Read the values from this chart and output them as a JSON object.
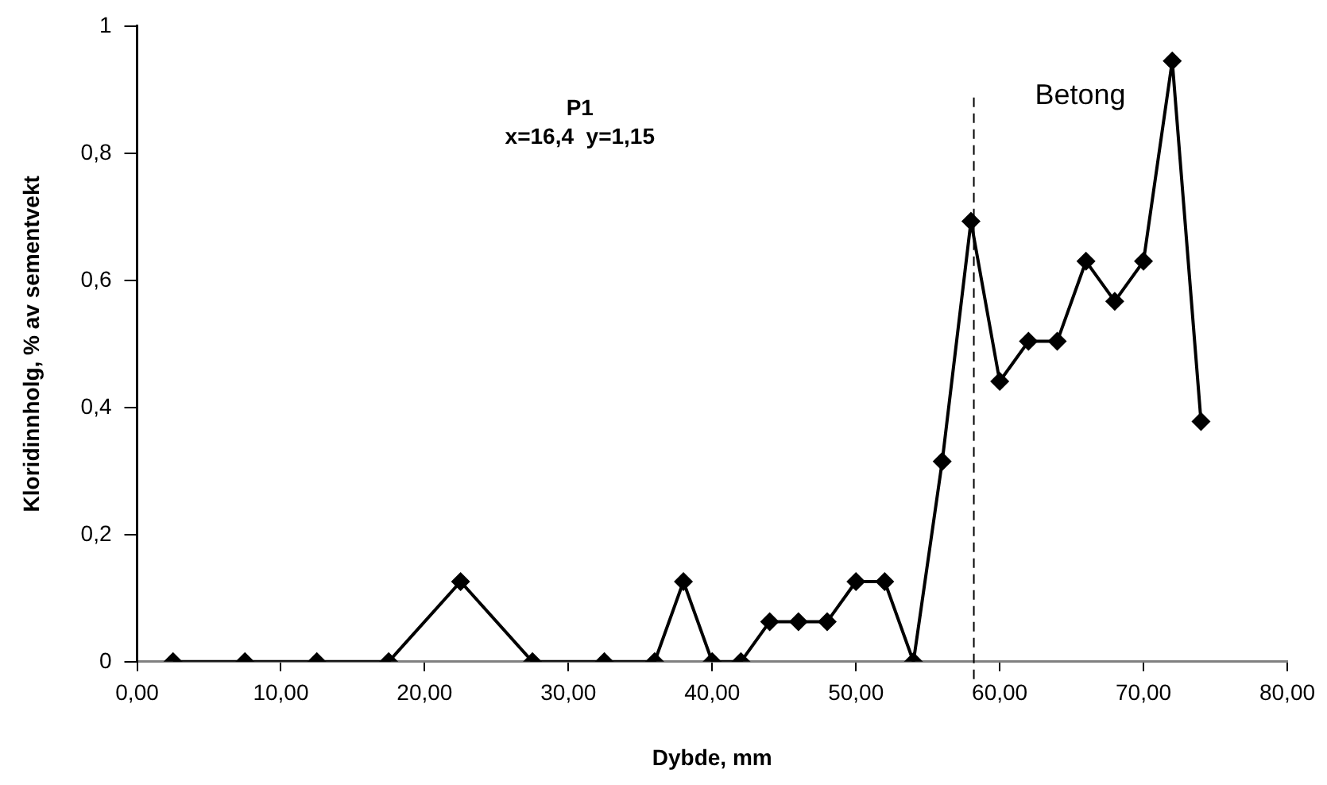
{
  "chart_data": {
    "type": "line",
    "xlabel": "Dybde, mm",
    "ylabel": "Kloridinnholg, % av sementvekt",
    "x": [
      2.5,
      7.5,
      12.5,
      17.5,
      22.5,
      27.5,
      32.5,
      36,
      38,
      40,
      42,
      44,
      46,
      48,
      50,
      52,
      54,
      56,
      58,
      60,
      62,
      64,
      66,
      68,
      70,
      72,
      74
    ],
    "series": [
      {
        "color": "#000000",
        "values": [
          0,
          0,
          0,
          0,
          0.126,
          0,
          0,
          0,
          0.126,
          0,
          0,
          0.063,
          0.063,
          0.063,
          0.126,
          0.126,
          0,
          0.315,
          0.693,
          0.441,
          0.504,
          0.504,
          0.63,
          0.567,
          0.63,
          0.945,
          0.378
        ]
      }
    ],
    "xlim": [
      0,
      80
    ],
    "xticks": [
      {
        "value": 0,
        "label": "0,00"
      },
      {
        "value": 10,
        "label": "10,00"
      },
      {
        "value": 20,
        "label": "20,00"
      },
      {
        "value": 30,
        "label": "30,00"
      },
      {
        "value": 40,
        "label": "40,00"
      },
      {
        "value": 50,
        "label": "50,00"
      },
      {
        "value": 60,
        "label": "60,00"
      },
      {
        "value": 70,
        "label": "70,00"
      },
      {
        "value": 80,
        "label": "80,00"
      }
    ],
    "ylim": [
      0,
      1
    ],
    "yticks": [
      0,
      {
        "value": 0.2,
        "label": "0,2"
      },
      {
        "value": 0.4,
        "label": "0,4"
      },
      {
        "value": 0.6,
        "label": "0,6"
      },
      {
        "value": 0.8,
        "label": "0,8"
      },
      1
    ],
    "ref_lines": [
      {
        "axis": "x",
        "value": 58.2,
        "color": "#000000",
        "line_style": "dashed"
      }
    ],
    "annotations": [
      "P1",
      "x=16,4  y=1,15",
      "Betong"
    ],
    "marker": "diamond",
    "line_style": "solid",
    "grid": false,
    "legend": false
  }
}
